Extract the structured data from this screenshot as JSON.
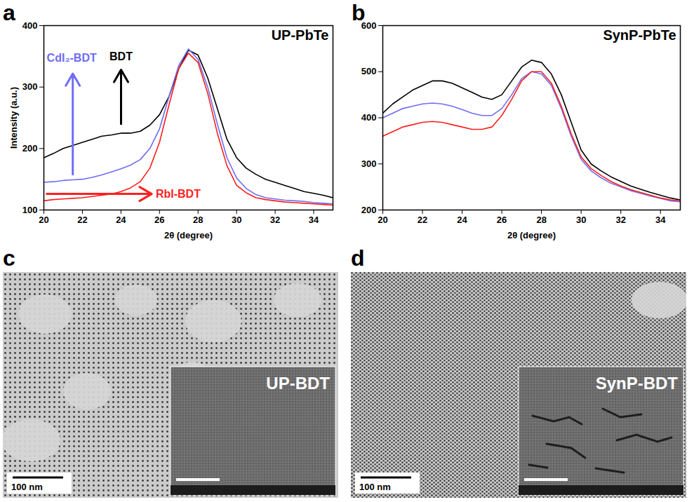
{
  "chart_data": [
    {
      "type": "line",
      "panel_label": "a",
      "title": "UP-PbTe",
      "x_label": "2θ (degree)",
      "y_label": "Intensity (a.u.)",
      "xlim": [
        20,
        35
      ],
      "xticks": [
        20,
        22,
        24,
        26,
        28,
        30,
        32,
        34
      ],
      "ylim": [
        100,
        400
      ],
      "yticks": [
        100,
        200,
        300,
        400
      ],
      "x": [
        20,
        20.5,
        21,
        21.5,
        22,
        22.5,
        23,
        23.5,
        24,
        24.5,
        25,
        25.5,
        26,
        26.5,
        27,
        27.5,
        28,
        28.5,
        29,
        29.5,
        30,
        30.5,
        31,
        31.5,
        32,
        32.5,
        33,
        33.5,
        34,
        34.5,
        35
      ],
      "series": [
        {
          "name": "BDT",
          "color": "#000000",
          "values": [
            185,
            192,
            200,
            205,
            210,
            215,
            220,
            222,
            225,
            225,
            228,
            238,
            255,
            285,
            330,
            360,
            352,
            315,
            265,
            215,
            185,
            168,
            158,
            150,
            145,
            140,
            135,
            130,
            127,
            124,
            120
          ]
        },
        {
          "name": "CdI₂-BDT",
          "color": "#6f6cf5",
          "values": [
            145,
            146,
            148,
            149,
            150,
            153,
            157,
            162,
            167,
            173,
            182,
            200,
            232,
            285,
            335,
            362,
            345,
            300,
            240,
            185,
            152,
            135,
            125,
            120,
            118,
            116,
            115,
            114,
            112,
            111,
            110
          ]
        },
        {
          "name": "RbI-BDT",
          "color": "#ff1f1f",
          "values": [
            115,
            117,
            118,
            119,
            120,
            122,
            124,
            126,
            130,
            136,
            146,
            168,
            210,
            272,
            330,
            355,
            340,
            290,
            225,
            172,
            140,
            128,
            120,
            117,
            115,
            113,
            112,
            111,
            110,
            109,
            108
          ]
        }
      ]
    },
    {
      "type": "line",
      "panel_label": "b",
      "title": "SynP-PbTe",
      "x_label": "2θ (degree)",
      "xlim": [
        20,
        35
      ],
      "xticks": [
        20,
        22,
        24,
        26,
        28,
        30,
        32,
        34
      ],
      "ylim": [
        200,
        600
      ],
      "yticks": [
        200,
        300,
        400,
        500,
        600
      ],
      "x": [
        20,
        20.5,
        21,
        21.5,
        22,
        22.5,
        23,
        23.5,
        24,
        24.5,
        25,
        25.5,
        26,
        26.5,
        27,
        27.5,
        28,
        28.5,
        29,
        29.5,
        30,
        30.5,
        31,
        31.5,
        32,
        32.5,
        33,
        33.5,
        34,
        34.5,
        35
      ],
      "series": [
        {
          "color": "#000000",
          "values": [
            410,
            430,
            445,
            460,
            470,
            480,
            480,
            475,
            465,
            455,
            445,
            440,
            450,
            480,
            510,
            525,
            520,
            495,
            450,
            390,
            330,
            300,
            285,
            272,
            262,
            252,
            245,
            238,
            232,
            226,
            222
          ]
        },
        {
          "color": "#6f6cf5",
          "values": [
            400,
            410,
            420,
            425,
            430,
            432,
            430,
            425,
            418,
            410,
            405,
            405,
            420,
            450,
            485,
            500,
            495,
            470,
            420,
            360,
            310,
            285,
            270,
            258,
            250,
            242,
            236,
            230,
            225,
            220,
            218
          ]
        },
        {
          "color": "#ff1f1f",
          "values": [
            360,
            370,
            380,
            385,
            390,
            392,
            390,
            385,
            380,
            375,
            375,
            380,
            405,
            440,
            480,
            500,
            500,
            475,
            425,
            365,
            315,
            290,
            275,
            262,
            252,
            244,
            238,
            232,
            226,
            222,
            220
          ]
        }
      ]
    }
  ],
  "images": [
    {
      "panel_label": "c",
      "scale_bar": "100 nm",
      "inset_label": "UP-BDT"
    },
    {
      "panel_label": "d",
      "scale_bar": "100 nm",
      "inset_label": "SynP-BDT"
    }
  ]
}
